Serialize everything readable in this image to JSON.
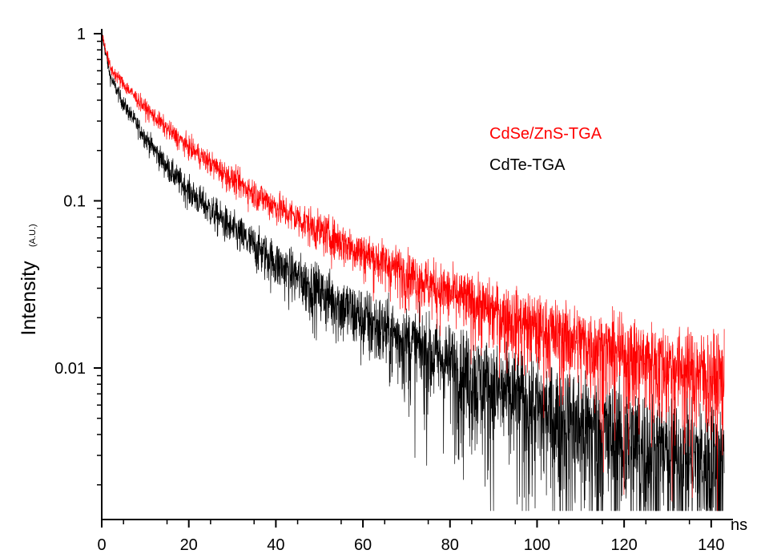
{
  "chart_data": {
    "type": "line",
    "title": "",
    "xlabel": "ns",
    "ylabel": "Intensity",
    "ylabel_unit": "(A.U.)",
    "xlim": [
      0,
      145
    ],
    "ylim": [
      0.0013,
      1.05
    ],
    "yscale": "log",
    "grid": false,
    "legend_position": "top-right",
    "x_ticks": [
      0,
      20,
      40,
      60,
      80,
      100,
      120,
      140
    ],
    "x_tick_labels": [
      "0",
      "20",
      "40",
      "60",
      "80",
      "100",
      "120",
      "140"
    ],
    "y_ticks": [
      1,
      0.1,
      0.01
    ],
    "y_tick_labels": [
      "1",
      "0.1",
      "0.01"
    ],
    "series": [
      {
        "name": "CdSe/ZnS-TGA",
        "color": "#ff0000",
        "x": [
          0,
          2,
          5,
          10,
          15,
          20,
          30,
          40,
          50,
          60,
          70,
          80,
          90,
          100,
          110,
          120,
          130,
          140,
          143
        ],
        "y": [
          1.0,
          0.62,
          0.5,
          0.36,
          0.27,
          0.21,
          0.135,
          0.093,
          0.067,
          0.049,
          0.037,
          0.028,
          0.022,
          0.0175,
          0.0145,
          0.012,
          0.0105,
          0.0092,
          0.0088
        ]
      },
      {
        "name": "CdTe-TGA",
        "color": "#000000",
        "x": [
          0,
          2,
          5,
          10,
          15,
          20,
          30,
          40,
          50,
          60,
          70,
          80,
          90,
          100,
          110,
          120,
          130,
          140,
          143
        ],
        "y": [
          1.0,
          0.55,
          0.38,
          0.24,
          0.16,
          0.115,
          0.068,
          0.043,
          0.029,
          0.02,
          0.0145,
          0.0108,
          0.0077,
          0.0058,
          0.0046,
          0.0037,
          0.0031,
          0.0028,
          0.0027
        ]
      }
    ]
  }
}
